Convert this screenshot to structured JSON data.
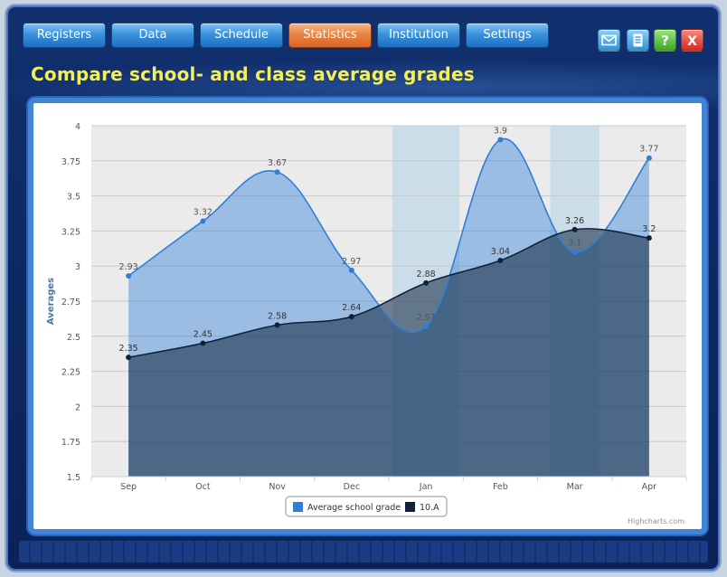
{
  "nav": {
    "items": [
      {
        "label": "Registers",
        "active": false
      },
      {
        "label": "Data",
        "active": false
      },
      {
        "label": "Schedule",
        "active": false
      },
      {
        "label": "Statistics",
        "active": true
      },
      {
        "label": "Institution",
        "active": false
      },
      {
        "label": "Settings",
        "active": false
      }
    ]
  },
  "toolbar": {
    "icons": [
      "mail-icon",
      "document-icon",
      "help-icon",
      "close-icon"
    ],
    "help_label": "?",
    "close_label": "X"
  },
  "page": {
    "title": "Compare school- and class average grades"
  },
  "colors": {
    "nav_button": "#3b93dc",
    "nav_active": "#ec8444",
    "title": "#f4ee5a",
    "school_series": "#2f7ed8",
    "class_series": "#0d233a",
    "band": "#c6dbe8"
  },
  "chart_data": {
    "type": "area",
    "categories": [
      "Sep",
      "Oct",
      "Nov",
      "Dec",
      "Jan",
      "Feb",
      "Mar",
      "Apr"
    ],
    "series": [
      {
        "name": "Average school grade",
        "values": [
          2.93,
          3.32,
          3.67,
          2.97,
          2.57,
          3.9,
          3.1,
          3.77
        ]
      },
      {
        "name": "10.A",
        "values": [
          2.35,
          2.45,
          2.58,
          2.64,
          2.88,
          3.04,
          3.26,
          3.2
        ]
      }
    ],
    "ylabel": "Averages",
    "ylim": [
      1.5,
      4
    ],
    "yticks": [
      "1.5",
      "1.75",
      "2",
      "2.25",
      "2.5",
      "2.75",
      "3",
      "3.25",
      "3.5",
      "3.75",
      "4"
    ],
    "highlight_bands": [
      "Jan",
      "Mar"
    ],
    "grid": true,
    "legend_position": "bottom-center",
    "credits": "Highcharts.com"
  }
}
